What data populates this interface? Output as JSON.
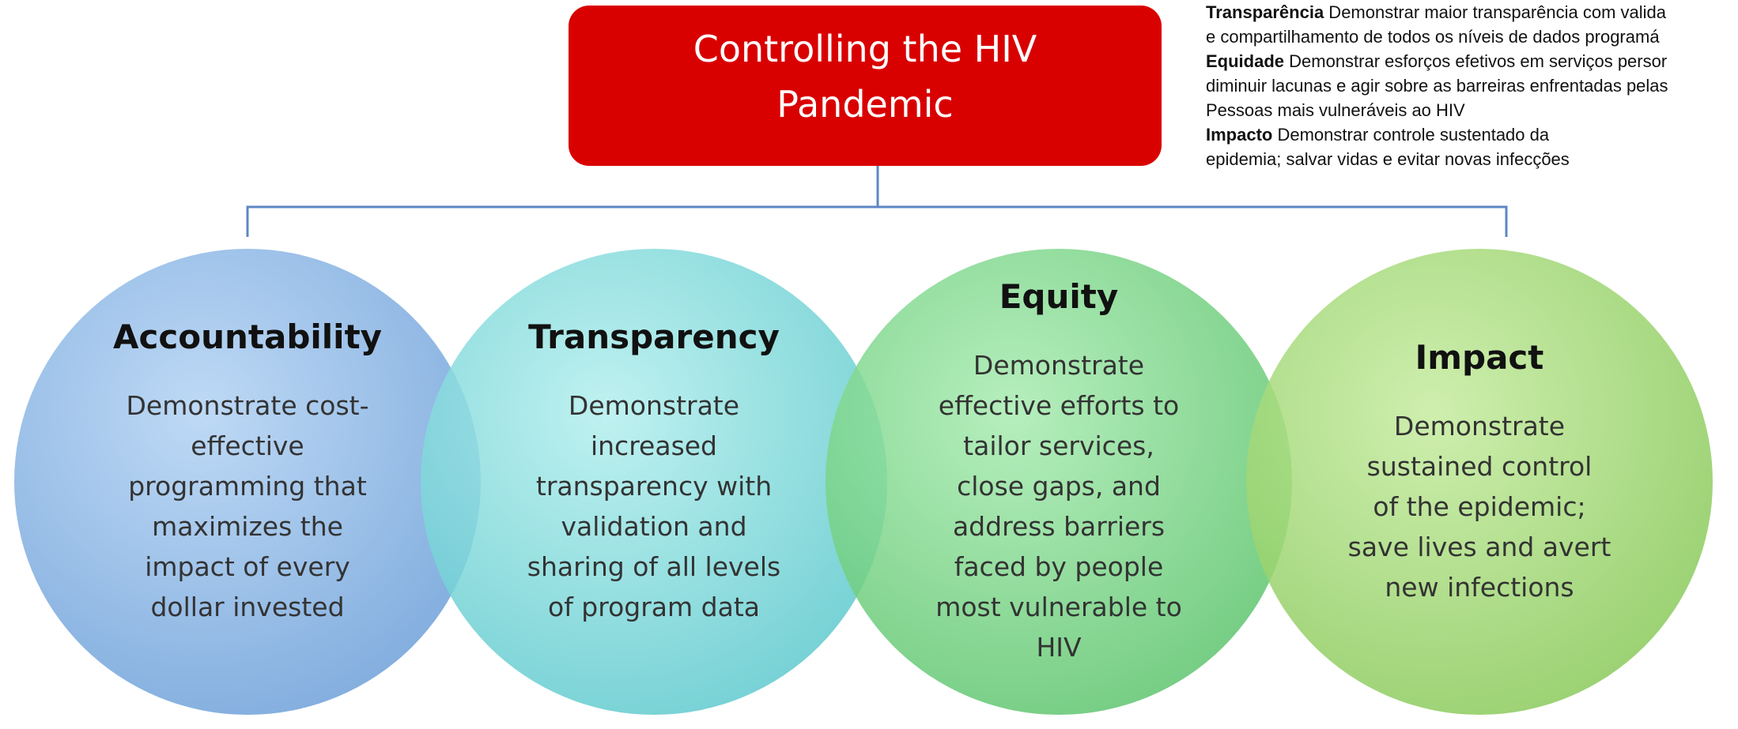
{
  "header": {
    "title": [
      "Controlling the HIV",
      "Pandemic"
    ]
  },
  "circles": [
    {
      "title": "Accountability",
      "lines": [
        "Demonstrate cost-",
        "effective",
        "programming that",
        "maximizes the",
        "impact of every",
        "dollar invested"
      ]
    },
    {
      "title": "Transparency",
      "lines": [
        "Demonstrate",
        "increased",
        "transparency with",
        "validation and",
        "sharing of all levels",
        "of program data"
      ]
    },
    {
      "title": "Equity",
      "lines": [
        "Demonstrate",
        "effective efforts to",
        "tailor services,",
        "close gaps, and",
        "address barriers",
        "faced by people",
        "most vulnerable to",
        "HIV"
      ]
    },
    {
      "title": "Impact",
      "lines": [
        "Demonstrate",
        "sustained control",
        "of the epidemic;",
        "save lives and avert",
        "new infections"
      ]
    }
  ],
  "notes": [
    {
      "label": "Transparência",
      "text": " Demonstrar maior transparência com valida"
    },
    {
      "label": "",
      "text": "e compartilhamento de todos os níveis de dados programá"
    },
    {
      "label": "Equidade",
      "text": " Demonstrar esforços efetivos em serviços persor"
    },
    {
      "label": "",
      "text": "diminuir lacunas e agir sobre as barreiras enfrentadas pelas"
    },
    {
      "label": "",
      "text": "Pessoas mais vulneráveis ao HIV"
    },
    {
      "label": "Impacto",
      "text": " Demonstrar controle sustentado da"
    },
    {
      "label": "",
      "text": "epidemia; salvar vidas e evitar novas infecções"
    }
  ]
}
